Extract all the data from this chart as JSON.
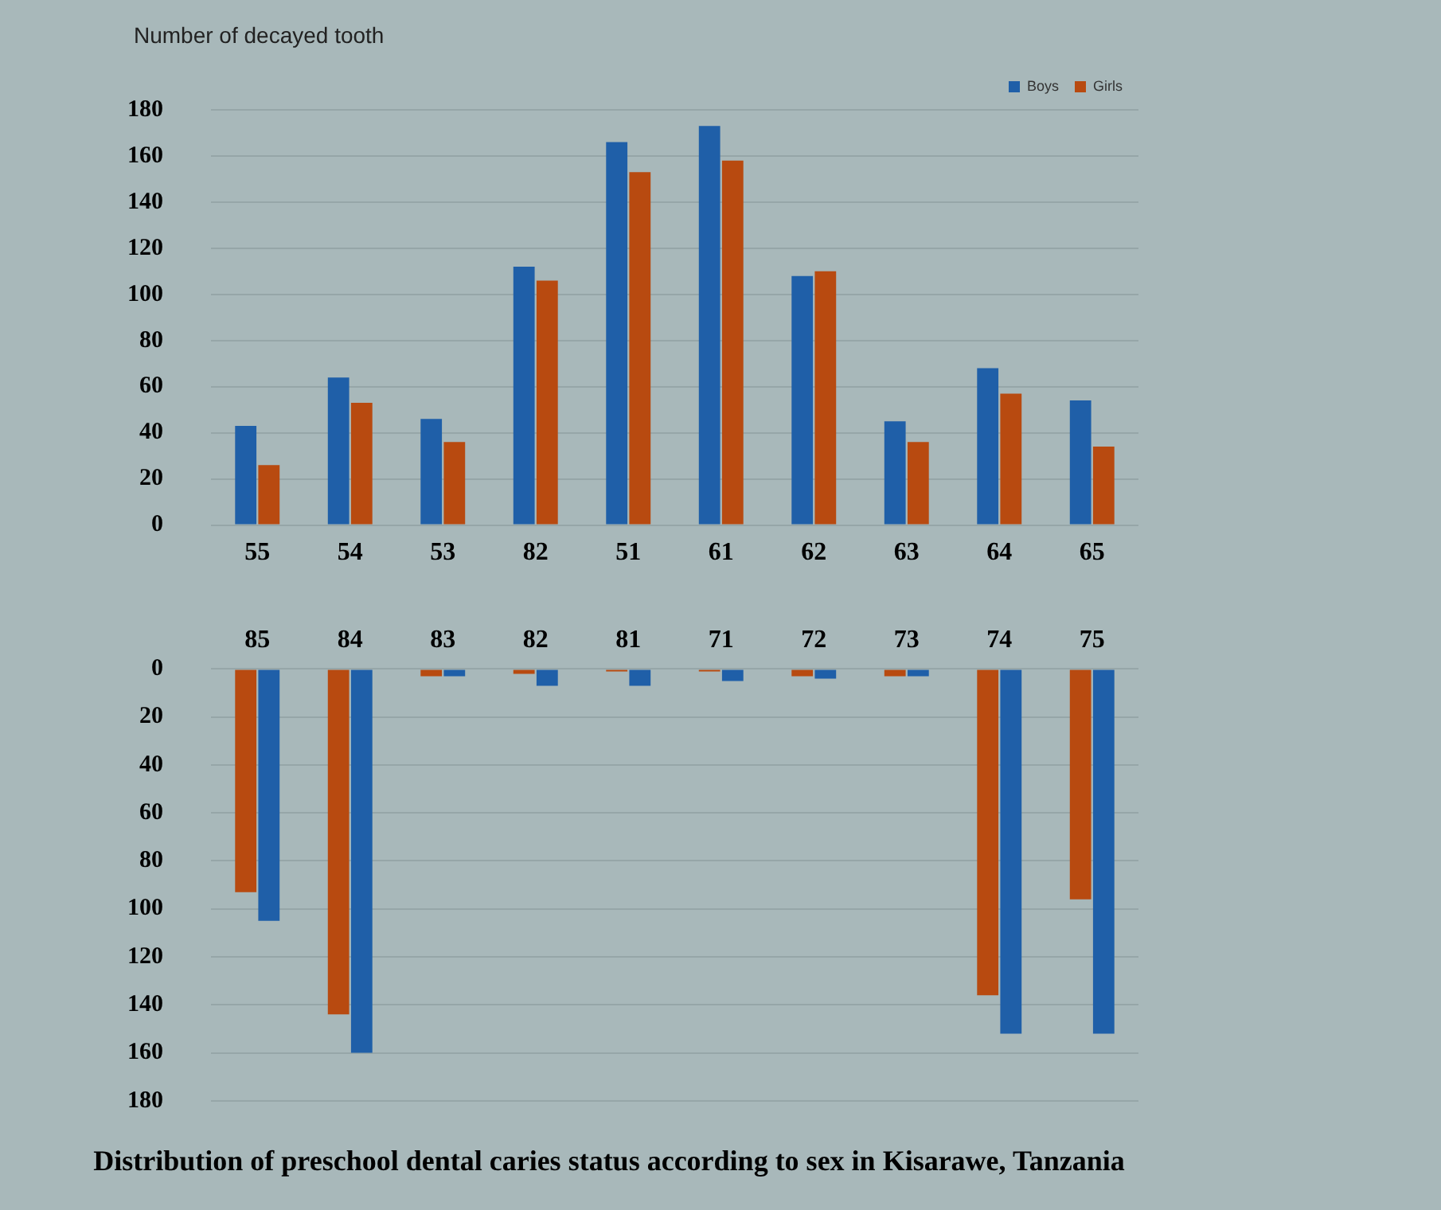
{
  "chart_data": [
    {
      "type": "bar",
      "ylabel": "Number of decayed tooth",
      "categories": [
        "55",
        "54",
        "53",
        "82",
        "51",
        "61",
        "62",
        "63",
        "64",
        "65"
      ],
      "series": [
        {
          "name": "Boys",
          "color": "#1f5fa8",
          "values": [
            43,
            64,
            46,
            112,
            166,
            173,
            108,
            45,
            68,
            54
          ]
        },
        {
          "name": "Girls",
          "color": "#b84a10",
          "values": [
            26,
            53,
            36,
            106,
            153,
            158,
            110,
            36,
            57,
            34
          ]
        }
      ],
      "ylim": [
        0,
        180
      ],
      "yticks": [
        0,
        20,
        40,
        60,
        80,
        100,
        120,
        140,
        160,
        180
      ],
      "grid": "y",
      "legend": "top right"
    },
    {
      "type": "bar",
      "title": "Distribution of preschool dental caries status according to sex in Kisarawe, Tanzania",
      "categories": [
        "85",
        "84",
        "83",
        "82",
        "81",
        "71",
        "72",
        "73",
        "74",
        "75"
      ],
      "series": [
        {
          "color": "#b84a10",
          "values": [
            93,
            144,
            3,
            2,
            1,
            1,
            3,
            3,
            136,
            96
          ]
        },
        {
          "color": "#1f5fa8",
          "values": [
            105,
            160,
            3,
            7,
            7,
            5,
            4,
            3,
            152,
            152
          ]
        }
      ],
      "ylim": [
        180,
        0
      ],
      "yticks": [
        0,
        20,
        40,
        60,
        80,
        100,
        120,
        140,
        160,
        180
      ],
      "grid": "y"
    }
  ]
}
